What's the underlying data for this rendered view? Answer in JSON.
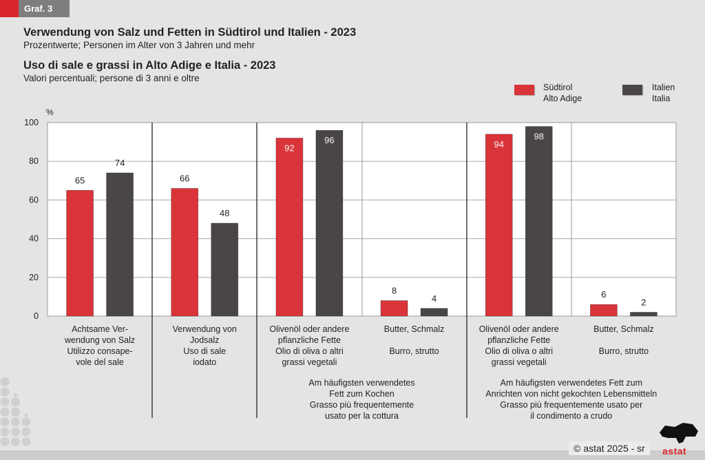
{
  "header": {
    "tag": "Graf. 3",
    "title_de": "Verwendung von Salz und Fetten in Südtirol und Italien - 2023",
    "subtitle_de": "Prozentwerte; Personen im Alter von 3 Jahren und mehr",
    "title_it": "Uso di sale e grassi in Alto Adige e Italia - 2023",
    "subtitle_it": "Valori percentuali; persone di 3 anni e oltre"
  },
  "legend": [
    {
      "line1": "Südtirol",
      "line2": "Alto Adige",
      "color": "#d9343a"
    },
    {
      "line1": "Italien",
      "line2": "Italia",
      "color": "#4a4646"
    }
  ],
  "chart_data": {
    "type": "bar",
    "title": "Verwendung von Salz und Fetten in Südtirol und Italien - 2023 / Uso di sale e grassi in Alto Adige e Italia - 2023",
    "ylabel": "%",
    "xlabel": "",
    "ylim": [
      0,
      100
    ],
    "yticks": [
      "0",
      "20",
      "40",
      "60",
      "80",
      "100"
    ],
    "grid": true,
    "legend_position": "top-right",
    "categories": [
      [
        "Achtsame Ver-",
        "wendung von Salz",
        "Utilizzo consape-",
        "vole del sale"
      ],
      [
        "Verwendung von",
        "Jodsalz",
        "Uso di sale",
        "iodato"
      ],
      [
        "Olivenöl oder andere",
        "pflanzliche Fette",
        "Olio di oliva o altri",
        "grassi vegetali"
      ],
      [
        "Butter, Schmalz",
        "",
        "Burro, strutto"
      ],
      [
        "Olivenöl oder andere",
        "pflanzliche Fette",
        "Olio di oliva o altri",
        "grassi vegetali"
      ],
      [
        "Butter, Schmalz",
        "",
        "Burro, strutto"
      ]
    ],
    "group_labels": [
      {
        "lines": [
          "Am häufigsten verwendetes",
          "Fett zum Kochen",
          "Grasso più frequentemente",
          "usato per la cottura"
        ],
        "covers": [
          2,
          3
        ]
      },
      {
        "lines": [
          "Am häufigsten verwendetes Fett zum",
          "Anrichten von nicht gekochten Lebensmitteln",
          "Grasso più frequentemente usato per",
          "il condimento a crudo"
        ],
        "covers": [
          4,
          5
        ]
      }
    ],
    "series": [
      {
        "name": "Südtirol / Alto Adige",
        "color": "#d9343a",
        "values": [
          65,
          66,
          92,
          8,
          94,
          6
        ]
      },
      {
        "name": "Italien / Italia",
        "color": "#4a4646",
        "values": [
          74,
          48,
          96,
          4,
          98,
          2
        ]
      }
    ]
  },
  "footer": {
    "copyright": "© astat 2025 - sr",
    "logo": "astat"
  }
}
